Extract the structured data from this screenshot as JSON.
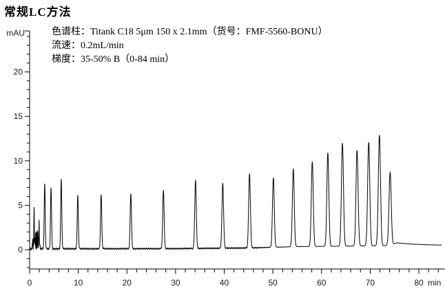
{
  "page": {
    "title": "常规LC方法"
  },
  "plot": {
    "y_axis_label": "mAU",
    "x_axis_label": "min",
    "annotation": {
      "line1": "色谱柱：Titank C18 5μm 150 x 2.1mm（货号：FMF-5560-BONU）",
      "line2": "流速：0.2mL/min",
      "line3": "梯度：35-50% B（0-84 min）"
    }
  },
  "chart_data": {
    "type": "line",
    "title": "常规LC方法",
    "xlabel": "min",
    "ylabel": "mAU",
    "xlim": [
      0,
      85.3
    ],
    "ylim": [
      -2.25,
      24.6
    ],
    "grid": false,
    "line_color": "#000000",
    "x_major_ticks": [
      0,
      10,
      20,
      30,
      40,
      50,
      60,
      70,
      80
    ],
    "x_minor_tick_step": 2,
    "x_minor_tick_max": 84,
    "y_major_ticks": [
      0,
      5,
      10,
      15,
      20
    ],
    "y_minor_tick_step": 1,
    "y_minor_tick_min": -2,
    "y_minor_tick_max": 24,
    "trace_end_min": 84.7,
    "peaks": [
      {
        "time_min": 3.1,
        "height_mau": 7.4
      },
      {
        "time_min": 4.4,
        "height_mau": 7.0
      },
      {
        "time_min": 6.5,
        "height_mau": 7.9
      },
      {
        "time_min": 9.9,
        "height_mau": 6.1
      },
      {
        "time_min": 14.7,
        "height_mau": 6.2
      },
      {
        "time_min": 20.8,
        "height_mau": 6.3
      },
      {
        "time_min": 27.5,
        "height_mau": 6.7
      },
      {
        "time_min": 34.1,
        "height_mau": 7.8
      },
      {
        "time_min": 39.7,
        "height_mau": 7.5
      },
      {
        "time_min": 45.2,
        "height_mau": 8.6
      },
      {
        "time_min": 50.1,
        "height_mau": 8.1
      },
      {
        "time_min": 54.2,
        "height_mau": 9.1
      },
      {
        "time_min": 58.1,
        "height_mau": 9.9
      },
      {
        "time_min": 61.3,
        "height_mau": 10.9
      },
      {
        "time_min": 64.3,
        "height_mau": 12.0
      },
      {
        "time_min": 67.3,
        "height_mau": 11.2
      },
      {
        "time_min": 69.7,
        "height_mau": 12.1
      },
      {
        "time_min": 71.9,
        "height_mau": 12.9
      },
      {
        "time_min": 74.1,
        "height_mau": 8.7
      }
    ],
    "peak_shape": {
      "sigma_base_min": 0.1,
      "sigma_per_min": 0.0017
    },
    "baseline_points": [
      [
        0,
        0.1
      ],
      [
        30,
        0.12
      ],
      [
        45,
        0.2
      ],
      [
        55,
        0.35
      ],
      [
        65,
        0.4
      ],
      [
        73,
        0.45
      ],
      [
        74.6,
        0.6
      ],
      [
        75.5,
        0.78
      ],
      [
        78,
        0.65
      ],
      [
        81,
        0.57
      ],
      [
        84.7,
        0.52
      ]
    ],
    "noise": {
      "amplitude_mau": 0.09,
      "fade_after_min": 46
    },
    "injection_disturbance": {
      "start_min": 0.45,
      "end_min": 2.25,
      "osc_height_mau": 2.3,
      "spikes": [
        {
          "time_min": 0.92,
          "height_mau": 4.3
        },
        {
          "time_min": 1.95,
          "height_mau": 2.6
        }
      ]
    }
  }
}
